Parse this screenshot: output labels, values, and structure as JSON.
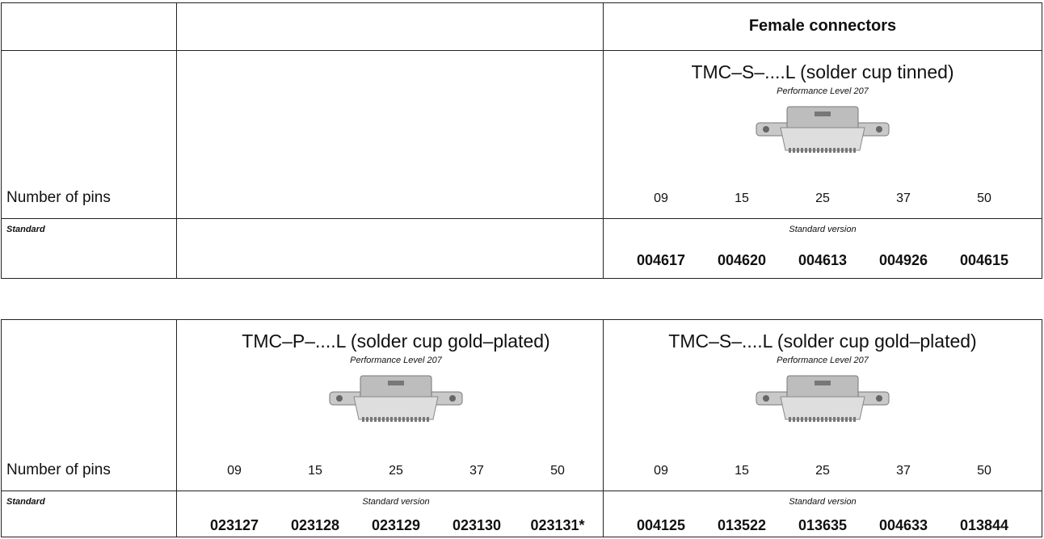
{
  "tables": [
    {
      "header": "Female connectors",
      "row_label": "Number of pins",
      "standard_label": "Standard",
      "groups": [
        {
          "title": "TMC–S–....L (solder cup tinned)",
          "subtitle": "Performance Level 207",
          "pins": [
            "09",
            "15",
            "25",
            "37",
            "50"
          ],
          "version": "Standard version",
          "codes": [
            "004617",
            "004620",
            "004613",
            "004926",
            "004615"
          ]
        }
      ]
    },
    {
      "row_label": "Number of pins",
      "standard_label": "Standard",
      "groups": [
        {
          "title": "TMC–P–....L (solder cup gold–plated)",
          "subtitle": "Performance Level 207",
          "pins": [
            "09",
            "15",
            "25",
            "37",
            "50"
          ],
          "version": "Standard version",
          "codes": [
            "023127",
            "023128",
            "023129",
            "023130",
            "023131*"
          ]
        },
        {
          "title": "TMC–S–....L (solder cup gold–plated)",
          "subtitle": "Performance Level 207",
          "pins": [
            "09",
            "15",
            "25",
            "37",
            "50"
          ],
          "version": "Standard version",
          "codes": [
            "004125",
            "013522",
            "013635",
            "004633",
            "013844"
          ]
        }
      ]
    }
  ]
}
